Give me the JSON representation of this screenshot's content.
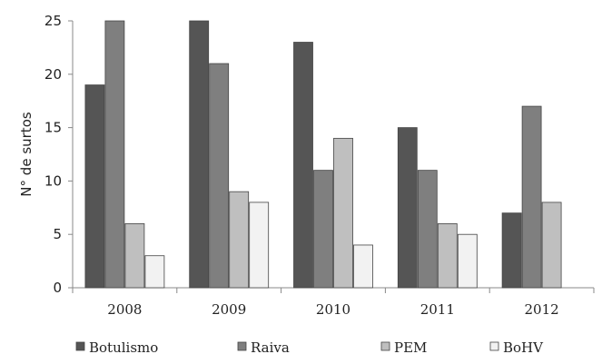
{
  "chart_data": {
    "type": "bar",
    "title": "",
    "xlabel": "",
    "ylabel": "N° de surtos",
    "ylim": [
      0,
      25
    ],
    "yticks": [
      0,
      5,
      10,
      15,
      20,
      25
    ],
    "categories": [
      "2008",
      "2009",
      "2010",
      "2011",
      "2012"
    ],
    "legend_position": "bottom",
    "series": [
      {
        "name": "Botulismo",
        "color": "#555555",
        "values": [
          19,
          25,
          23,
          15,
          7
        ]
      },
      {
        "name": "Raiva",
        "color": "#7f7f7f",
        "values": [
          25,
          21,
          11,
          11,
          17
        ]
      },
      {
        "name": "PEM",
        "color": "#bfbfbf",
        "values": [
          6,
          9,
          14,
          6,
          8
        ]
      },
      {
        "name": "BoHV",
        "color": "#f2f2f2",
        "values": [
          3,
          8,
          4,
          5,
          0
        ]
      }
    ]
  }
}
